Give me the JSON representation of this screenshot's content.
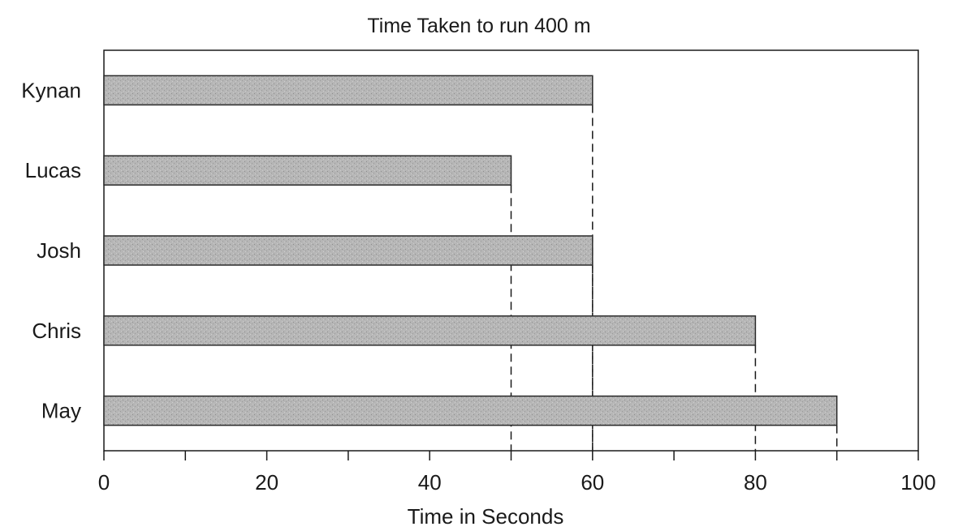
{
  "chart_data": {
    "type": "bar",
    "orientation": "horizontal",
    "title": "Time Taken to run 400 m",
    "xlabel": "Time in Seconds",
    "ylabel": "",
    "categories": [
      "Kynan",
      "Lucas",
      "Josh",
      "Chris",
      "May"
    ],
    "values": [
      60,
      50,
      60,
      80,
      90
    ],
    "xlim": [
      0,
      100
    ],
    "major_ticks": [
      0,
      20,
      40,
      60,
      80,
      100
    ],
    "minor_ticks": [
      10,
      30,
      50,
      70,
      90
    ],
    "grid": false,
    "legend": "none",
    "bar_color": "#b4b4b4",
    "bar_edge_color": "#2a2a2a",
    "dashed_reference_lines": true
  }
}
